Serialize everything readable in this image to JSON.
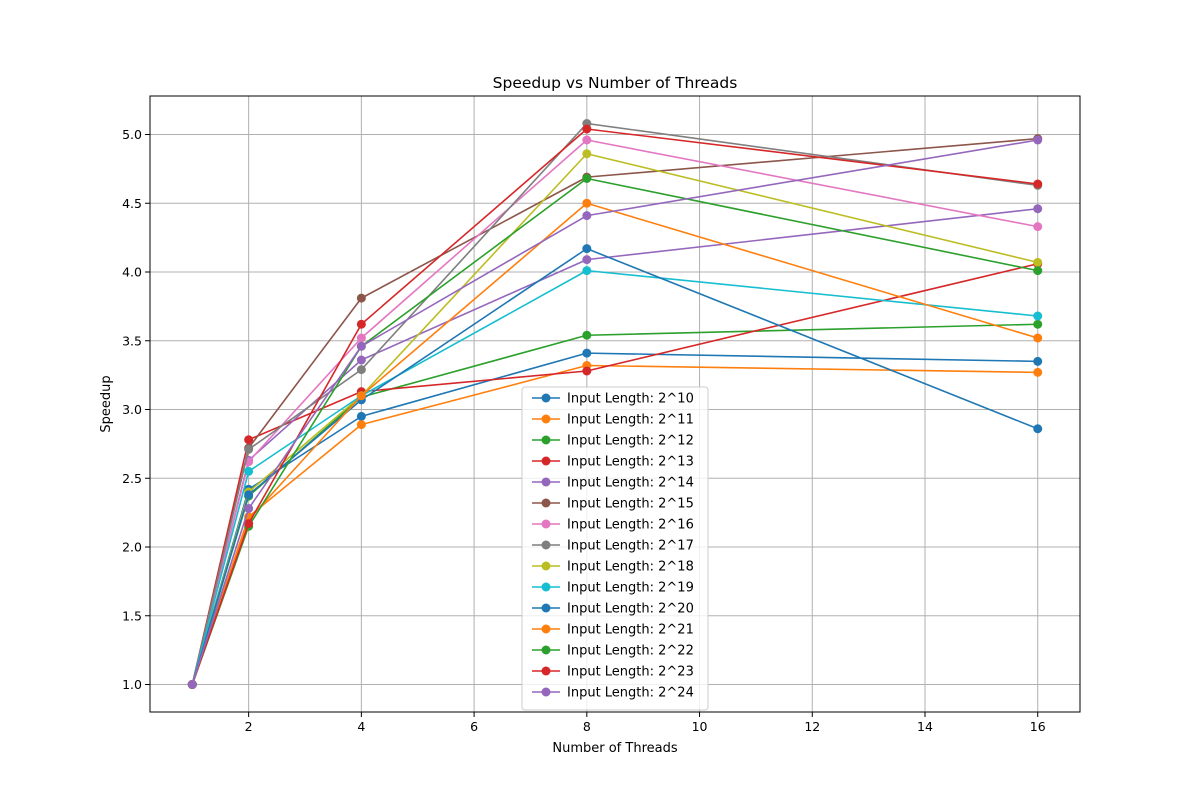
{
  "chart_data": {
    "type": "line",
    "title": "Speedup vs Number of Threads",
    "xlabel": "Number of Threads",
    "ylabel": "Speedup",
    "x": [
      1,
      2,
      4,
      8,
      16
    ],
    "xlim": [
      0.25,
      16.75
    ],
    "ylim": [
      0.8,
      5.28
    ],
    "xticks": [
      2,
      4,
      6,
      8,
      10,
      12,
      14,
      16
    ],
    "yticks": [
      1.0,
      1.5,
      2.0,
      2.5,
      3.0,
      3.5,
      4.0,
      4.5,
      5.0
    ],
    "grid": true,
    "legend_position": "lower-center",
    "series": [
      {
        "name": "Input Length: 2^10",
        "color": "#1f77b4",
        "values": [
          1.0,
          2.42,
          2.95,
          3.41,
          3.35
        ]
      },
      {
        "name": "Input Length: 2^11",
        "color": "#ff7f0e",
        "values": [
          1.0,
          2.22,
          2.89,
          3.32,
          3.27
        ]
      },
      {
        "name": "Input Length: 2^12",
        "color": "#2ca02c",
        "values": [
          1.0,
          2.37,
          3.09,
          3.54,
          3.62
        ]
      },
      {
        "name": "Input Length: 2^13",
        "color": "#d62728",
        "values": [
          1.0,
          2.78,
          3.13,
          3.28,
          4.06
        ]
      },
      {
        "name": "Input Length: 2^14",
        "color": "#9467bd",
        "values": [
          1.0,
          2.63,
          3.36,
          4.09,
          4.46
        ]
      },
      {
        "name": "Input Length: 2^15",
        "color": "#8c564b",
        "values": [
          1.0,
          2.72,
          3.81,
          4.69,
          4.97
        ]
      },
      {
        "name": "Input Length: 2^16",
        "color": "#e377c2",
        "values": [
          1.0,
          2.62,
          3.52,
          4.96,
          4.33
        ]
      },
      {
        "name": "Input Length: 2^17",
        "color": "#7f7f7f",
        "values": [
          1.0,
          2.71,
          3.29,
          5.08,
          4.63
        ]
      },
      {
        "name": "Input Length: 2^18",
        "color": "#bcbd22",
        "values": [
          1.0,
          2.4,
          3.1,
          4.86,
          4.07
        ]
      },
      {
        "name": "Input Length: 2^19",
        "color": "#17becf",
        "values": [
          1.0,
          2.55,
          3.1,
          4.01,
          3.68
        ]
      },
      {
        "name": "Input Length: 2^20",
        "color": "#1f77b4",
        "values": [
          1.0,
          2.38,
          3.07,
          4.17,
          2.86
        ]
      },
      {
        "name": "Input Length: 2^21",
        "color": "#ff7f0e",
        "values": [
          1.0,
          2.2,
          3.1,
          4.5,
          3.52
        ]
      },
      {
        "name": "Input Length: 2^22",
        "color": "#2ca02c",
        "values": [
          1.0,
          2.15,
          3.46,
          4.68,
          4.01
        ]
      },
      {
        "name": "Input Length: 2^23",
        "color": "#d62728",
        "values": [
          1.0,
          2.17,
          3.62,
          5.04,
          4.64
        ]
      },
      {
        "name": "Input Length: 2^24",
        "color": "#9467bd",
        "values": [
          1.0,
          2.28,
          3.46,
          4.41,
          4.96
        ]
      }
    ]
  }
}
